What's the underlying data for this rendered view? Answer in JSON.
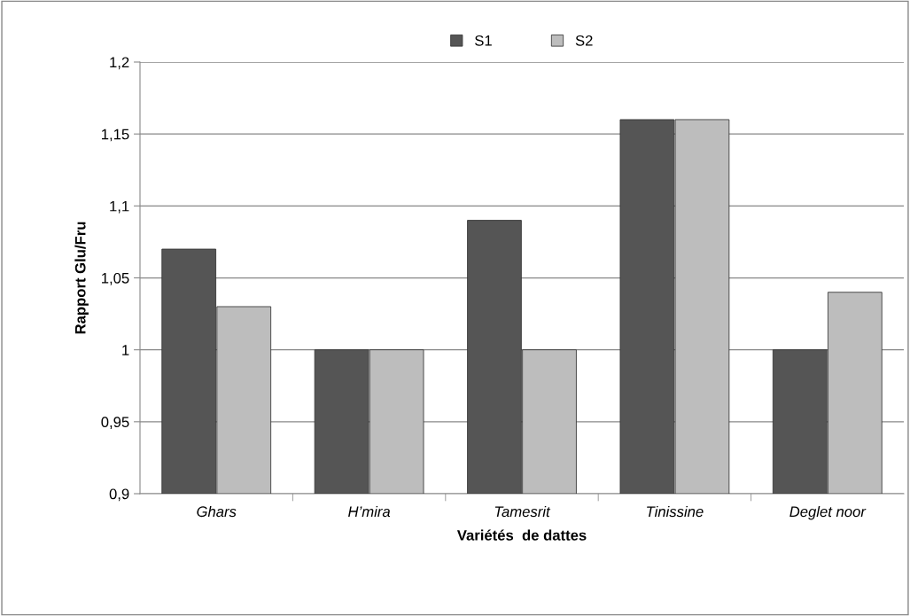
{
  "chart_data": {
    "type": "bar",
    "xlabel": "Variétés  de dattes",
    "ylabel": "Rapport Glu/Fru",
    "categories": [
      "Ghars",
      "H’mira",
      "Tamesrit",
      "Tinissine",
      "Deglet noor"
    ],
    "series": [
      {
        "name": "S1",
        "color": "#555555",
        "values": [
          1.07,
          1.0,
          1.09,
          1.16,
          1.0
        ]
      },
      {
        "name": "S2",
        "color": "#bdbdbd",
        "values": [
          1.03,
          1.0,
          1.0,
          1.16,
          1.04
        ]
      }
    ],
    "ylim": [
      0.9,
      1.2
    ],
    "yticks": [
      {
        "value": 0.9,
        "label": "0,9"
      },
      {
        "value": 0.95,
        "label": "0,95"
      },
      {
        "value": 1.0,
        "label": "1"
      },
      {
        "value": 1.05,
        "label": "1,05"
      },
      {
        "value": 1.1,
        "label": "1,1"
      },
      {
        "value": 1.15,
        "label": "1,15"
      },
      {
        "value": 1.2,
        "label": "1,2"
      }
    ],
    "grid": "y",
    "legend": "top"
  }
}
